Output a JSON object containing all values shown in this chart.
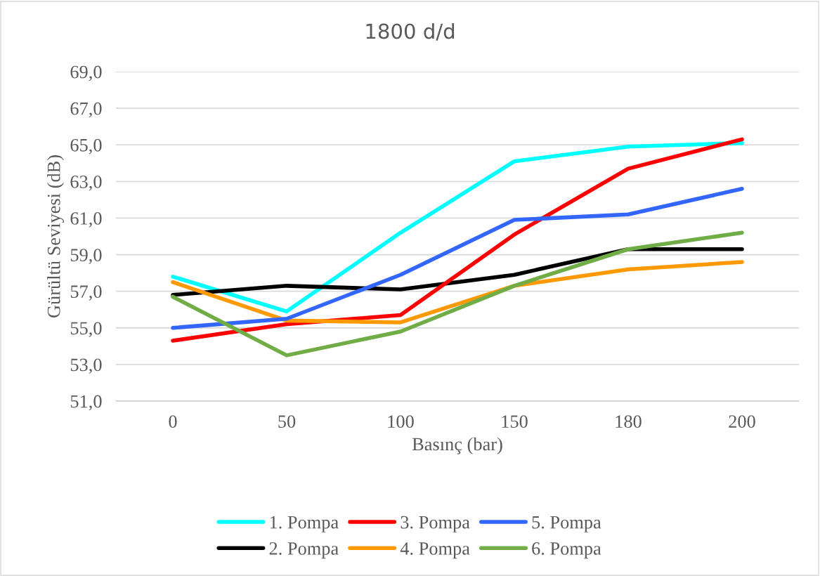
{
  "chart_data": {
    "type": "line",
    "title": "1800 d/d",
    "xlabel": "Basınç (bar)",
    "ylabel": "Gürültü Seviyesi (dB)",
    "categories": [
      "0",
      "50",
      "100",
      "150",
      "180",
      "200"
    ],
    "ylim": [
      51,
      69
    ],
    "yticks": [
      {
        "value": 51,
        "label": "51,0"
      },
      {
        "value": 53,
        "label": "53,0"
      },
      {
        "value": 55,
        "label": "55,0"
      },
      {
        "value": 57,
        "label": "57,0"
      },
      {
        "value": 59,
        "label": "59,0"
      },
      {
        "value": 61,
        "label": "61,0"
      },
      {
        "value": 63,
        "label": "63,0"
      },
      {
        "value": 65,
        "label": "65,0"
      },
      {
        "value": 67,
        "label": "67,0"
      },
      {
        "value": 69,
        "label": "69,0"
      }
    ],
    "grid": "y",
    "legend": "bottom",
    "marker": "none",
    "line_style": "solid",
    "series": [
      {
        "name": "1. Pompa",
        "color": "#00ffff",
        "values": [
          57.8,
          55.9,
          60.2,
          64.1,
          64.9,
          65.1
        ]
      },
      {
        "name": "2. Pompa",
        "color": "#000000",
        "values": [
          56.8,
          57.3,
          57.1,
          57.9,
          59.3,
          59.3
        ]
      },
      {
        "name": "3. Pompa",
        "color": "#ff0000",
        "values": [
          54.3,
          55.2,
          55.7,
          60.1,
          63.7,
          65.3
        ]
      },
      {
        "name": "4. Pompa",
        "color": "#ff9900",
        "values": [
          57.5,
          55.4,
          55.3,
          57.3,
          58.2,
          58.6
        ]
      },
      {
        "name": "5. Pompa",
        "color": "#3366ff",
        "values": [
          55.0,
          55.5,
          57.9,
          60.9,
          61.2,
          62.6
        ]
      },
      {
        "name": "6. Pompa",
        "color": "#70ad47",
        "values": [
          56.7,
          53.5,
          54.8,
          57.3,
          59.3,
          60.2
        ]
      }
    ]
  }
}
